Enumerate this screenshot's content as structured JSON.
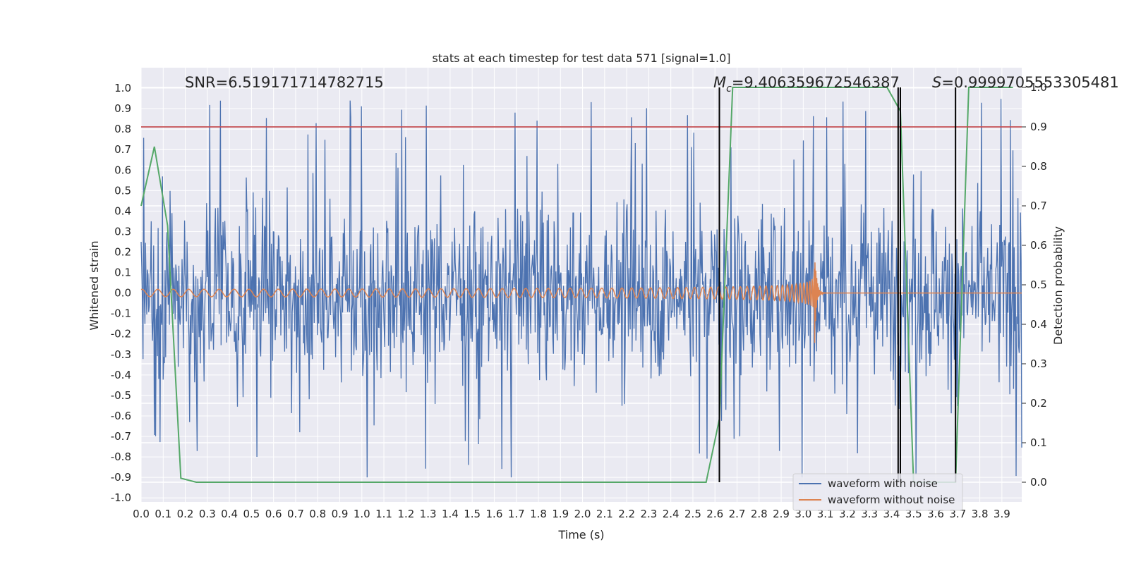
{
  "chart_data": {
    "type": "line",
    "title": "stats at each timestep for test data 571 [signal=1.0]",
    "xlabel": "Time (s)",
    "ylabel": "Whitened strain",
    "y2label": "Detection probability",
    "xlim": [
      0.0,
      3.99
    ],
    "ylim": [
      -1.02,
      1.1
    ],
    "y2lim": [
      -0.05,
      1.05
    ],
    "xticks": [
      "0.0",
      "0.1",
      "0.2",
      "0.3",
      "0.4",
      "0.5",
      "0.6",
      "0.7",
      "0.8",
      "0.9",
      "1.0",
      "1.1",
      "1.2",
      "1.3",
      "1.4",
      "1.5",
      "1.6",
      "1.7",
      "1.8",
      "1.9",
      "2.0",
      "2.1",
      "2.2",
      "2.3",
      "2.4",
      "2.5",
      "2.6",
      "2.7",
      "2.8",
      "2.9",
      "3.0",
      "3.1",
      "3.2",
      "3.3",
      "3.4",
      "3.5",
      "3.6",
      "3.7",
      "3.8",
      "3.9"
    ],
    "yticks": [
      "-1.0",
      "-0.9",
      "-0.8",
      "-0.7",
      "-0.6",
      "-0.5",
      "-0.4",
      "-0.3",
      "-0.2",
      "-0.1",
      "0.0",
      "0.1",
      "0.2",
      "0.3",
      "0.4",
      "0.5",
      "0.6",
      "0.7",
      "0.8",
      "0.9",
      "1.0"
    ],
    "y2ticks": [
      "0.0",
      "0.1",
      "0.2",
      "0.3",
      "0.4",
      "0.5",
      "0.6",
      "0.7",
      "0.8",
      "0.9",
      "1.0"
    ],
    "annotations": {
      "snr": "SNR=6.519171714782715",
      "mc_symbol": "M",
      "mc_sub": "c",
      "mc_value": "=9.406359672546387",
      "s_symbol": "S",
      "s_value": "=0.9999705553305481"
    },
    "grid": true,
    "legend_position": "lower right",
    "colors": {
      "noisy": "#4c72b0",
      "clean": "#dd8452",
      "probability": "#55a868",
      "threshold": "#c44e52",
      "markers": "#000000",
      "background": "#eaeaf2",
      "grid": "#ffffff"
    },
    "series": [
      {
        "name": "waveform with noise",
        "axis": "left",
        "description_stats": {
          "approx_amplitude_range": [
            -0.9,
            1.0
          ]
        }
      },
      {
        "name": "waveform without noise",
        "axis": "left",
        "merger_time": 3.05,
        "peak_amplitude": 0.32
      },
      {
        "axis": "right",
        "x": [
          0.0,
          0.06,
          0.12,
          0.18,
          0.25,
          0.5,
          1.0,
          1.5,
          2.0,
          2.5,
          2.56,
          2.62,
          2.68,
          3.0,
          3.38,
          3.44,
          3.5,
          3.69,
          3.75,
          3.95
        ],
        "y": [
          0.7,
          0.85,
          0.65,
          0.01,
          0.0,
          0.0,
          0.0,
          0.0,
          0.0,
          0.0,
          0.0,
          0.16,
          1.0,
          1.0,
          1.0,
          0.94,
          0.0,
          0.0,
          1.0,
          1.0
        ]
      },
      {
        "axis": "right",
        "type": "hline",
        "y": 0.9
      }
    ],
    "vlines": [
      {
        "x": 2.62,
        "y2_range": [
          0.0,
          1.0
        ]
      },
      {
        "x": 3.43,
        "y2_range": [
          0.0,
          1.0
        ]
      },
      {
        "x": 3.44,
        "y2_range": [
          0.0,
          1.0
        ]
      },
      {
        "x": 3.69,
        "y2_range": [
          0.0,
          1.0
        ]
      }
    ]
  }
}
